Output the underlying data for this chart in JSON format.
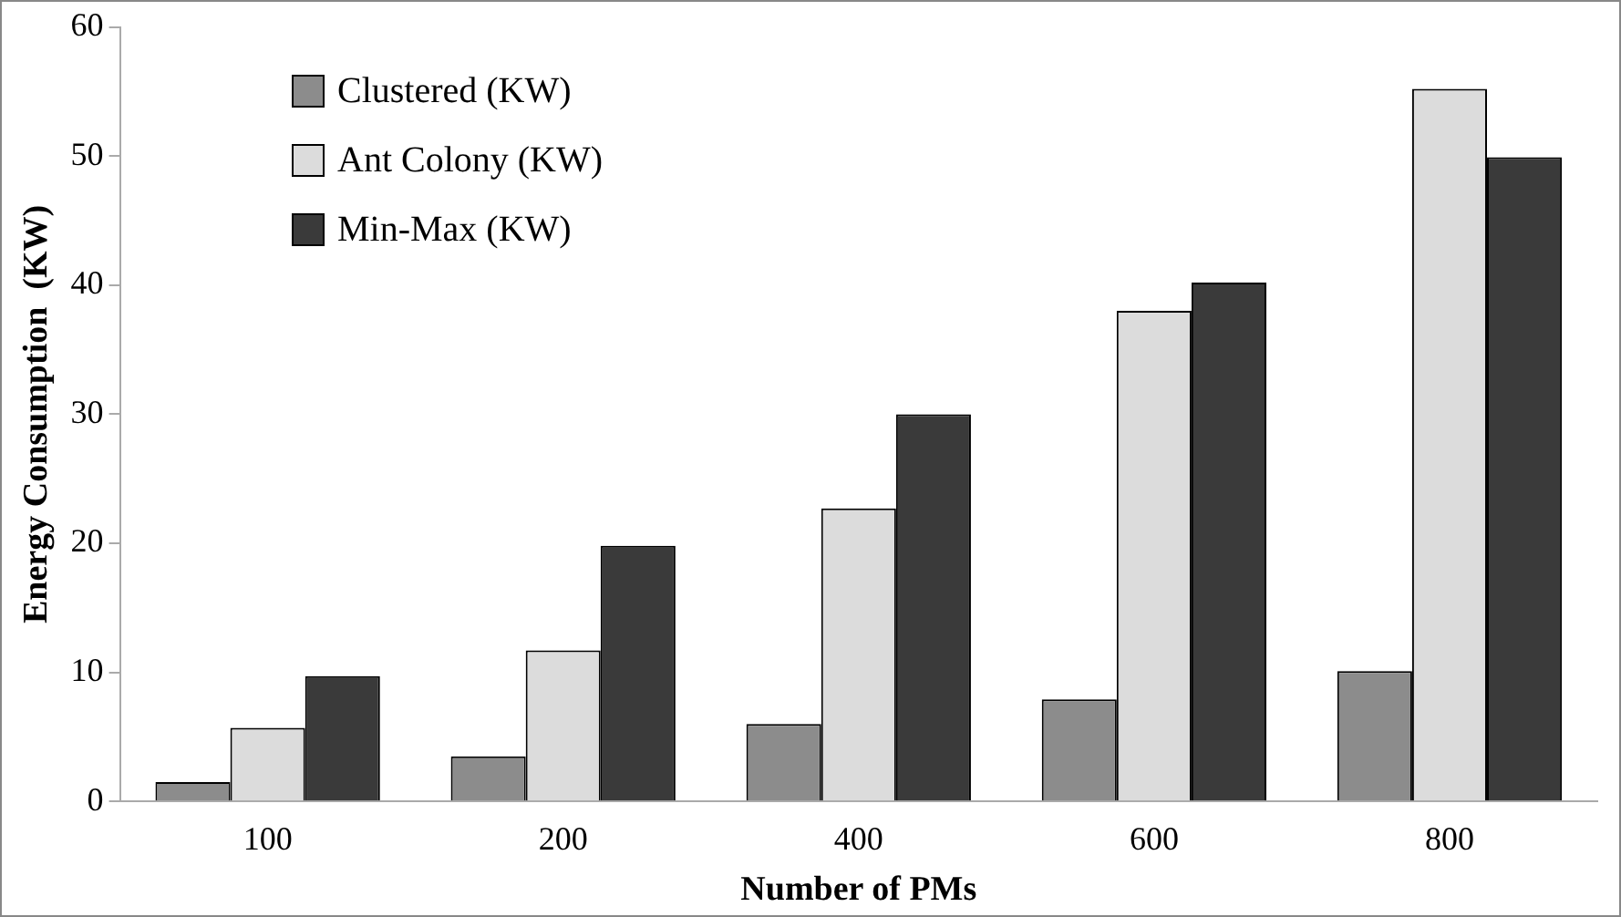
{
  "chart_data": {
    "type": "bar",
    "xlabel": "Number of PMs",
    "ylabel": "Energy Consumption  (KW)",
    "categories": [
      "100",
      "200",
      "400",
      "600",
      "800"
    ],
    "series": [
      {
        "name": "Clustered (KW)",
        "color": "#8c8c8c",
        "values": [
          1.5,
          3.5,
          6.0,
          7.9,
          10.1
        ]
      },
      {
        "name": "Ant Colony (KW)",
        "color": "#dcdcdc",
        "values": [
          5.7,
          11.7,
          22.7,
          38.0,
          55.2
        ]
      },
      {
        "name": "Min-Max (KW)",
        "color": "#3a3a3a",
        "values": [
          9.7,
          19.8,
          30.0,
          40.2,
          49.9
        ]
      }
    ],
    "ylim": [
      0,
      60
    ],
    "yticks": [
      0,
      10,
      20,
      30,
      40,
      50,
      60
    ],
    "grid": false,
    "legend": "top left"
  }
}
